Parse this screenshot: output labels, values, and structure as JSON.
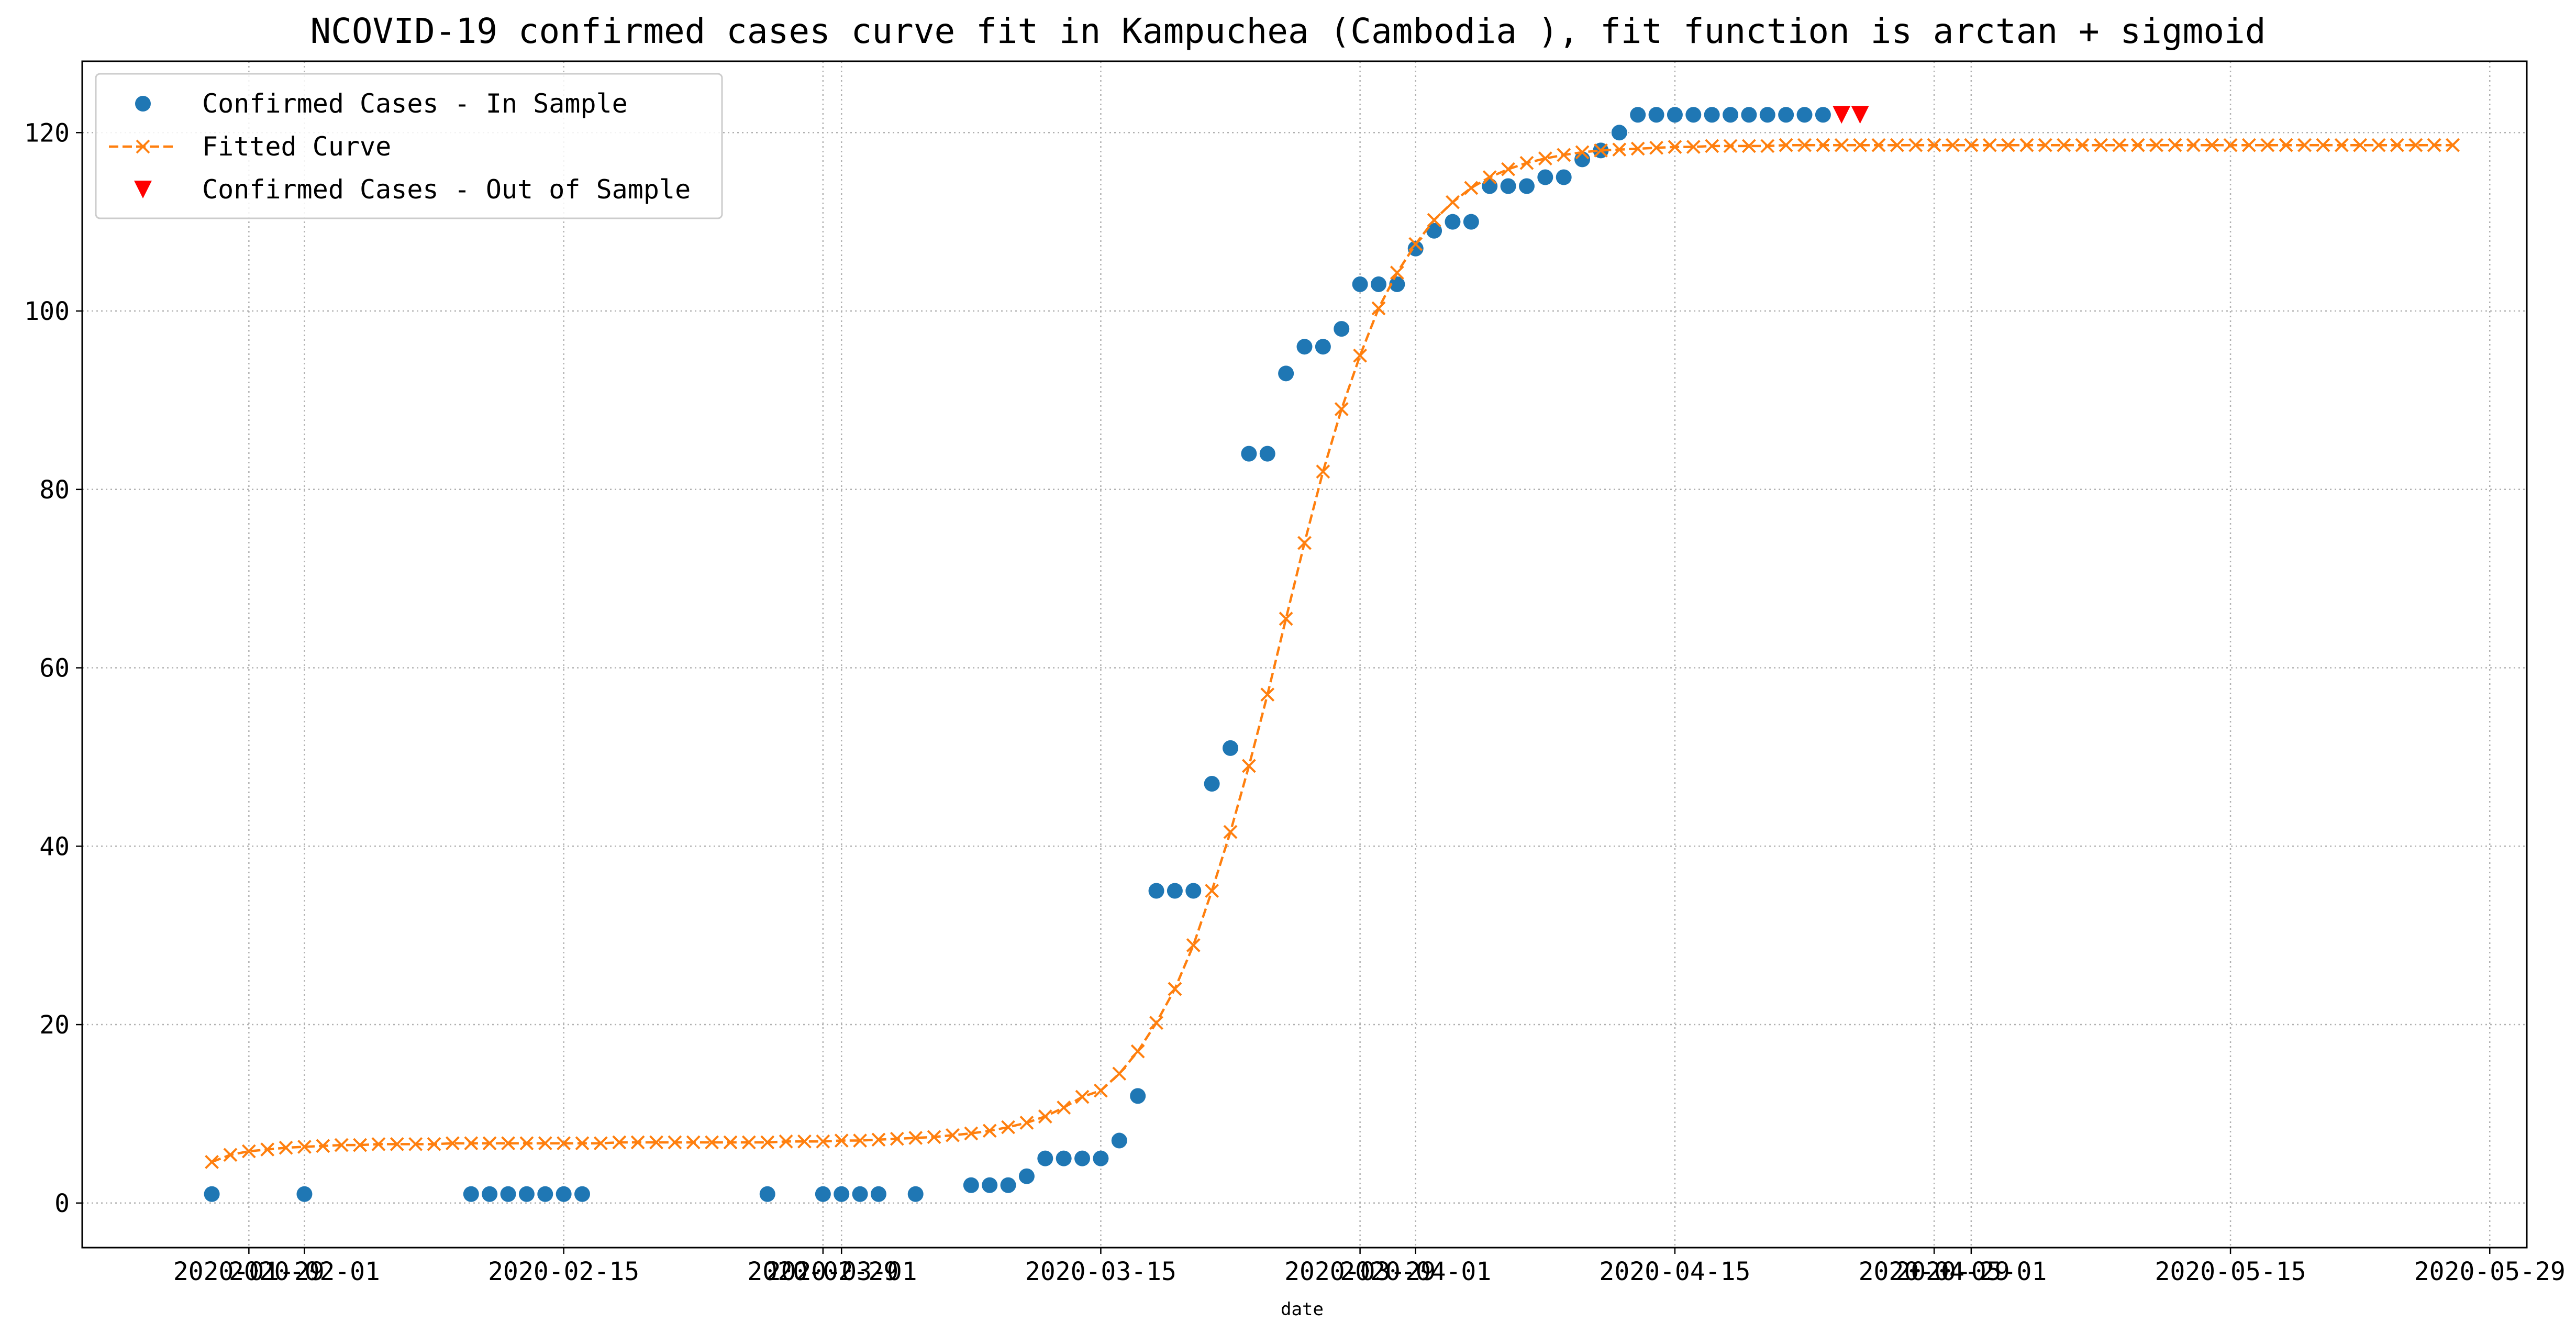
{
  "chart_data": {
    "type": "line",
    "title": "NCOVID-19 confirmed cases curve fit in Kampuchea (Cambodia ), fit function is arctan + sigmoid",
    "xlabel": "date",
    "ylabel": "",
    "x_axis_type": "date",
    "xlim": [
      "2020-01-20",
      "2020-05-31"
    ],
    "ylim": [
      -5,
      128
    ],
    "x_ticks": [
      "2020-01-29",
      "2020-02-01",
      "2020-02-15",
      "2020-02-29",
      "2020-03-01",
      "2020-03-15",
      "2020-03-29",
      "2020-04-01",
      "2020-04-15",
      "2020-04-29",
      "2020-05-01",
      "2020-05-15",
      "2020-05-29"
    ],
    "y_ticks": [
      0,
      20,
      40,
      60,
      80,
      100,
      120
    ],
    "grid": true,
    "grid_style": "dotted",
    "legend_position": "top-left",
    "series": [
      {
        "name": "Confirmed Cases - In Sample",
        "style": "markers",
        "marker": "circle",
        "color": "#1f77b4",
        "points": [
          [
            "2020-01-27",
            1
          ],
          [
            "2020-02-01",
            1
          ],
          [
            "2020-02-10",
            1
          ],
          [
            "2020-02-11",
            1
          ],
          [
            "2020-02-12",
            1
          ],
          [
            "2020-02-13",
            1
          ],
          [
            "2020-02-14",
            1
          ],
          [
            "2020-02-15",
            1
          ],
          [
            "2020-02-16",
            1
          ],
          [
            "2020-02-26",
            1
          ],
          [
            "2020-02-29",
            1
          ],
          [
            "2020-03-01",
            1
          ],
          [
            "2020-03-02",
            1
          ],
          [
            "2020-03-03",
            1
          ],
          [
            "2020-03-05",
            1
          ],
          [
            "2020-03-08",
            2
          ],
          [
            "2020-03-09",
            2
          ],
          [
            "2020-03-10",
            2
          ],
          [
            "2020-03-11",
            3
          ],
          [
            "2020-03-12",
            5
          ],
          [
            "2020-03-13",
            5
          ],
          [
            "2020-03-14",
            5
          ],
          [
            "2020-03-15",
            5
          ],
          [
            "2020-03-16",
            7
          ],
          [
            "2020-03-17",
            12
          ],
          [
            "2020-03-18",
            35
          ],
          [
            "2020-03-19",
            35
          ],
          [
            "2020-03-20",
            35
          ],
          [
            "2020-03-21",
            47
          ],
          [
            "2020-03-22",
            51
          ],
          [
            "2020-03-23",
            84
          ],
          [
            "2020-03-24",
            84
          ],
          [
            "2020-03-25",
            93
          ],
          [
            "2020-03-26",
            96
          ],
          [
            "2020-03-27",
            96
          ],
          [
            "2020-03-28",
            98
          ],
          [
            "2020-03-29",
            103
          ],
          [
            "2020-03-30",
            103
          ],
          [
            "2020-03-31",
            103
          ],
          [
            "2020-04-01",
            107
          ],
          [
            "2020-04-02",
            109
          ],
          [
            "2020-04-03",
            110
          ],
          [
            "2020-04-04",
            110
          ],
          [
            "2020-04-05",
            114
          ],
          [
            "2020-04-06",
            114
          ],
          [
            "2020-04-07",
            114
          ],
          [
            "2020-04-08",
            115
          ],
          [
            "2020-04-09",
            115
          ],
          [
            "2020-04-10",
            117
          ],
          [
            "2020-04-11",
            118
          ],
          [
            "2020-04-12",
            120
          ],
          [
            "2020-04-13",
            122
          ],
          [
            "2020-04-14",
            122
          ],
          [
            "2020-04-15",
            122
          ],
          [
            "2020-04-16",
            122
          ],
          [
            "2020-04-17",
            122
          ],
          [
            "2020-04-18",
            122
          ],
          [
            "2020-04-19",
            122
          ],
          [
            "2020-04-20",
            122
          ],
          [
            "2020-04-21",
            122
          ],
          [
            "2020-04-22",
            122
          ],
          [
            "2020-04-23",
            122
          ]
        ]
      },
      {
        "name": "Fitted Curve",
        "style": "dashed-line-with-x-markers",
        "marker": "x",
        "color": "#ff7f0e",
        "start_date": "2020-01-27",
        "values": [
          4.6,
          5.4,
          5.8,
          6.0,
          6.2,
          6.3,
          6.4,
          6.5,
          6.5,
          6.6,
          6.6,
          6.6,
          6.6,
          6.7,
          6.7,
          6.7,
          6.7,
          6.7,
          6.7,
          6.7,
          6.7,
          6.7,
          6.8,
          6.8,
          6.8,
          6.8,
          6.8,
          6.8,
          6.8,
          6.8,
          6.8,
          6.9,
          6.9,
          6.9,
          7.0,
          7.0,
          7.1,
          7.2,
          7.3,
          7.4,
          7.6,
          7.8,
          8.1,
          8.5,
          9.0,
          9.7,
          10.7,
          11.9,
          12.6,
          14.5,
          17.0,
          20.2,
          24.0,
          28.9,
          35.0,
          41.6,
          49.0,
          57.0,
          65.5,
          74.0,
          82.0,
          89.0,
          95.0,
          100.3,
          104.3,
          107.5,
          110.2,
          112.2,
          113.8,
          115.0,
          115.9,
          116.6,
          117.1,
          117.5,
          117.8,
          118.0,
          118.1,
          118.2,
          118.3,
          118.4,
          118.4,
          118.5,
          118.5,
          118.5,
          118.5,
          118.6,
          118.6,
          118.6,
          118.6,
          118.6,
          118.6,
          118.6,
          118.6,
          118.6,
          118.6,
          118.6,
          118.6,
          118.6,
          118.6,
          118.6,
          118.6,
          118.6,
          118.6,
          118.6,
          118.6,
          118.6,
          118.6,
          118.6,
          118.6,
          118.6,
          118.6,
          118.6,
          118.6,
          118.6,
          118.6,
          118.6,
          118.6,
          118.6,
          118.6,
          118.6,
          118.6,
          118.6
        ]
      },
      {
        "name": "Confirmed Cases - Out of Sample",
        "style": "markers",
        "marker": "triangle-down",
        "color": "#ff0000",
        "points": [
          [
            "2020-04-24",
            122
          ],
          [
            "2020-04-25",
            122
          ]
        ]
      }
    ]
  }
}
